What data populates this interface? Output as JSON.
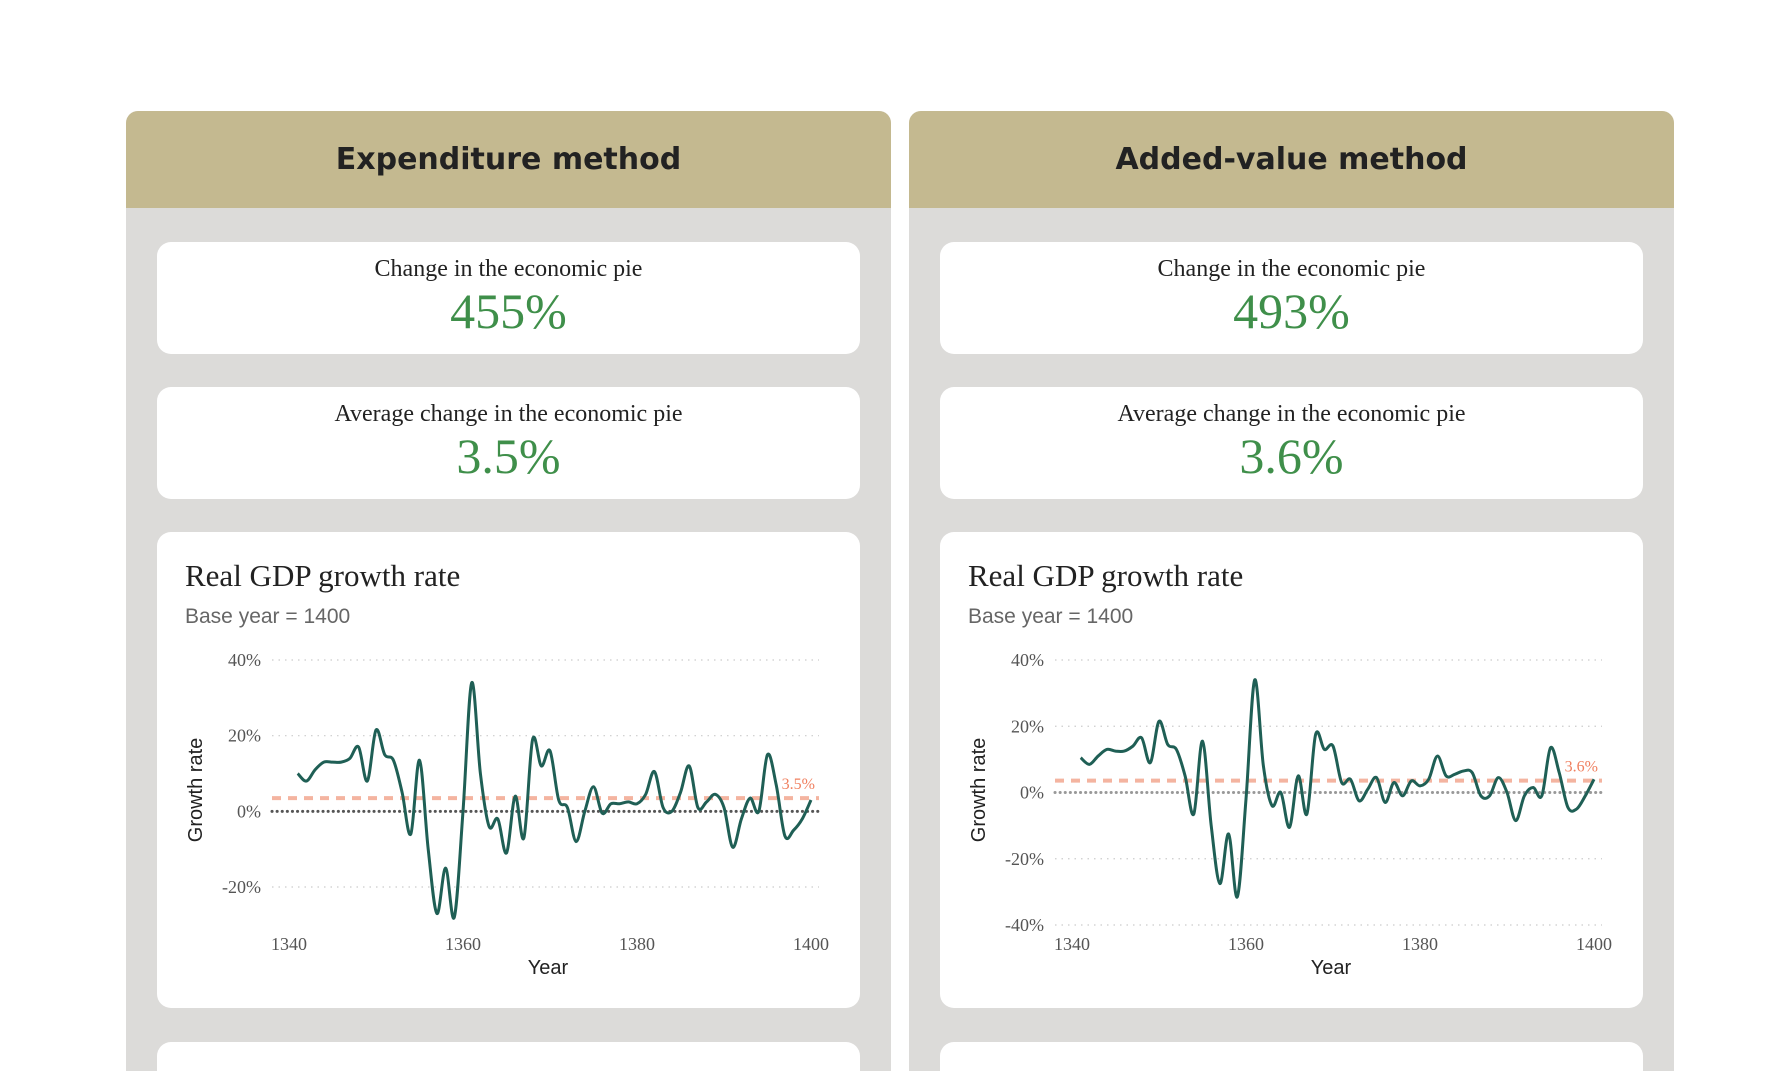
{
  "panels": [
    {
      "header": "Expenditure method",
      "total_label": "Change in the economic pie",
      "total_value": "455%",
      "avg_label": "Average change in the economic pie",
      "avg_value": "3.5%",
      "chart_title": "Real GDP growth rate",
      "chart_subtitle": "Base year = 1400"
    },
    {
      "header": "Added-value method",
      "total_label": "Change in the economic pie",
      "total_value": "493%",
      "avg_label": "Average change in the economic pie",
      "avg_value": "3.6%",
      "chart_title": "Real GDP growth rate",
      "chart_subtitle": "Base year = 1400"
    }
  ],
  "colors": {
    "header": "#c4b990",
    "panel": "#dcdbd9",
    "value_green": "#3f8f4a",
    "line": "#1f5f55",
    "mean_line": "#f4b4a0",
    "mean_label": "#f08060"
  },
  "chart_data": [
    {
      "type": "line",
      "xlabel": "Year",
      "ylabel": "Growth rate",
      "xlim": [
        1340,
        1400
      ],
      "ylim": [
        -30,
        40
      ],
      "xticks": [
        "1340",
        "1360",
        "1380",
        "1400"
      ],
      "yticks": [
        -20,
        0,
        20,
        40
      ],
      "ytick_labels": [
        "-20%",
        "0%",
        "20%",
        "40%"
      ],
      "grid": true,
      "mean": 3.5,
      "mean_label": "3.5%",
      "zero_line_color": "#555555",
      "x": [
        1341,
        1342,
        1343,
        1344,
        1345,
        1346,
        1347,
        1348,
        1349,
        1350,
        1351,
        1352,
        1353,
        1354,
        1355,
        1356,
        1357,
        1358,
        1359,
        1360,
        1361,
        1362,
        1363,
        1364,
        1365,
        1366,
        1367,
        1368,
        1369,
        1370,
        1371,
        1372,
        1373,
        1374,
        1375,
        1376,
        1377,
        1378,
        1379,
        1380,
        1381,
        1382,
        1383,
        1384,
        1385,
        1386,
        1387,
        1388,
        1389,
        1390,
        1391,
        1392,
        1393,
        1394,
        1395,
        1396,
        1397,
        1398,
        1399,
        1400
      ],
      "y": [
        10,
        8,
        11,
        13,
        13,
        13,
        14,
        17,
        8,
        21.5,
        15,
        13.5,
        5,
        -6,
        13.5,
        -10,
        -27,
        -15,
        -28,
        0,
        34,
        10,
        -4,
        -2,
        -11,
        4,
        -7,
        19,
        12,
        16,
        3,
        1,
        -8,
        0,
        6.5,
        -0.5,
        2,
        2,
        2.5,
        2,
        4.5,
        10.5,
        1,
        0,
        5,
        12,
        1,
        2.5,
        4.5,
        1,
        -9.5,
        -2,
        3.5,
        0,
        15,
        7,
        -6.5,
        -5,
        -2,
        3
      ]
    },
    {
      "type": "line",
      "xlabel": "Year",
      "ylabel": "Growth rate",
      "xlim": [
        1340,
        1400
      ],
      "ylim": [
        -40,
        40
      ],
      "xticks": [
        "1340",
        "1360",
        "1380",
        "1400"
      ],
      "yticks": [
        -40,
        -20,
        0,
        20,
        40
      ],
      "ytick_labels": [
        "-40%",
        "-20%",
        "0%",
        "20%",
        "40%"
      ],
      "grid": true,
      "mean": 3.6,
      "mean_label": "3.6%",
      "zero_line_color": "#999999",
      "x": [
        1341,
        1342,
        1343,
        1344,
        1345,
        1346,
        1347,
        1348,
        1349,
        1350,
        1351,
        1352,
        1353,
        1354,
        1355,
        1356,
        1357,
        1358,
        1359,
        1360,
        1361,
        1362,
        1363,
        1364,
        1365,
        1366,
        1367,
        1368,
        1369,
        1370,
        1371,
        1372,
        1373,
        1374,
        1375,
        1376,
        1377,
        1378,
        1379,
        1380,
        1381,
        1382,
        1383,
        1384,
        1385,
        1386,
        1387,
        1388,
        1389,
        1390,
        1391,
        1392,
        1393,
        1394,
        1395,
        1396,
        1397,
        1398,
        1399,
        1400
      ],
      "y": [
        10.5,
        8.5,
        11,
        13,
        12.5,
        12.5,
        14,
        16.5,
        9,
        21.5,
        14.5,
        13,
        5,
        -6.5,
        15.5,
        -10,
        -27.5,
        -12.5,
        -31.5,
        -2,
        34,
        8,
        -4,
        0,
        -10.5,
        5,
        -6.5,
        17.5,
        13,
        14,
        3,
        4,
        -2.5,
        1,
        4.5,
        -3,
        3,
        -1,
        3.5,
        2,
        4,
        11,
        5,
        5.5,
        6.5,
        6,
        -1,
        -1,
        4.5,
        0,
        -8.5,
        -1,
        1.5,
        -1,
        13.5,
        6,
        -4.5,
        -5,
        -1,
        4
      ]
    }
  ]
}
